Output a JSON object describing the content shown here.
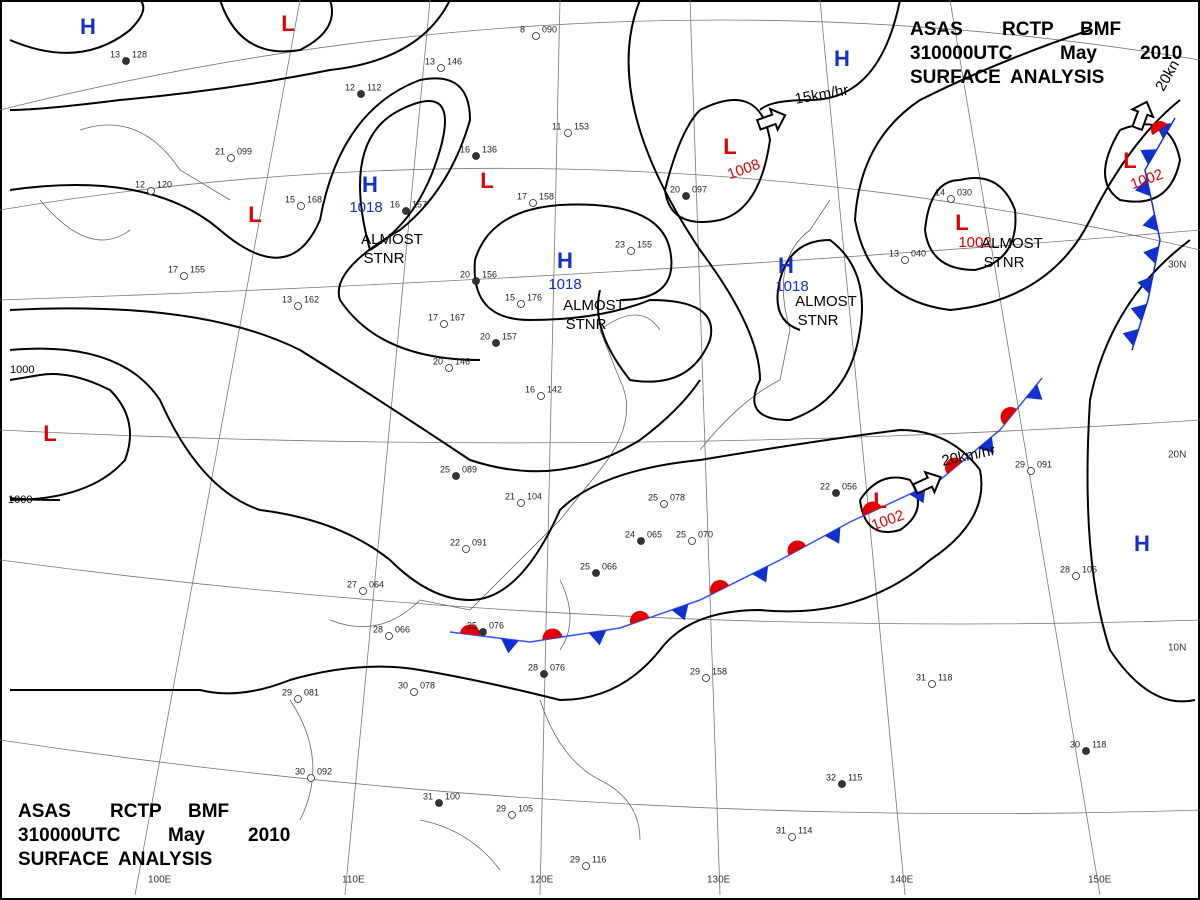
{
  "header_top": {
    "lines": [
      [
        "ASAS",
        "RCTP",
        "BMF"
      ],
      [
        "310000UTC",
        "May",
        "2010"
      ],
      [
        "SURFACE",
        "ANALYSIS"
      ]
    ]
  },
  "header_bottom": {
    "lines": [
      [
        "ASAS",
        "RCTP",
        "BMF"
      ],
      [
        "310000UTC",
        "May",
        "2010"
      ],
      [
        "SURFACE",
        "ANALYSIS"
      ]
    ]
  },
  "centers": [
    {
      "type": "H",
      "color": "#1030d0"
    },
    {
      "type": "L",
      "color": "#e00000"
    },
    {
      "type": "H",
      "pressure": "1018",
      "color": "#1030d0"
    },
    {
      "type": "L",
      "color": "#e00000"
    },
    {
      "type": "L",
      "color": "#e00000"
    },
    {
      "type": "H",
      "pressure": "1018",
      "color": "#1030d0"
    },
    {
      "type": "L",
      "pressure": "1008",
      "color": "#e00000"
    },
    {
      "type": "H",
      "pressure": "1018",
      "color": "#1030d0"
    },
    {
      "type": "H",
      "color": "#1030d0"
    },
    {
      "type": "L",
      "pressure": "1002",
      "color": "#e00000"
    },
    {
      "type": "L",
      "pressure": "1002",
      "color": "#e00000"
    },
    {
      "type": "L",
      "color": "#e00000"
    },
    {
      "type": "L",
      "pressure": "1002",
      "color": "#e00000"
    },
    {
      "type": "H",
      "color": "#1030d0"
    }
  ],
  "annotations": [
    [
      "ALMOST",
      "STNR"
    ],
    [
      "ALMOST",
      "STNR"
    ],
    [
      "ALMOST",
      "STNR"
    ],
    [
      "ALMOST",
      "STNR"
    ]
  ],
  "motions": [
    "15km/hr",
    "20km/hr",
    "20kn"
  ],
  "isobar_labels": [
    "1000",
    "1000"
  ],
  "longitudes": [
    "100E",
    "110E",
    "120E",
    "130E",
    "140E",
    "150E"
  ],
  "latitudes": [
    "30N",
    "20N",
    "10N"
  ],
  "stations": [
    [
      "13",
      "128"
    ],
    [
      "21",
      "099"
    ],
    [
      "12",
      "120"
    ],
    [
      "12",
      "112"
    ],
    [
      "13",
      "146"
    ],
    [
      "8",
      "090"
    ],
    [
      "16",
      "136"
    ],
    [
      "11",
      "153"
    ],
    [
      "15",
      "168"
    ],
    [
      "16",
      "157"
    ],
    [
      "17",
      "158"
    ],
    [
      "23",
      "155"
    ],
    [
      "20",
      "097"
    ],
    [
      "17",
      "155"
    ],
    [
      "13",
      "162"
    ],
    [
      "20",
      "156"
    ],
    [
      "15",
      "176"
    ],
    [
      "17",
      "167"
    ],
    [
      "20",
      "157"
    ],
    [
      "20",
      "146"
    ],
    [
      "16",
      "142"
    ],
    [
      "25",
      "089"
    ],
    [
      "21",
      "104"
    ],
    [
      "22",
      "091"
    ],
    [
      "24",
      "065"
    ],
    [
      "25",
      "078"
    ],
    [
      "25",
      "070"
    ],
    [
      "25",
      "066"
    ],
    [
      "27",
      "064"
    ],
    [
      "28",
      "066"
    ],
    [
      "25",
      "076"
    ],
    [
      "29",
      "081"
    ],
    [
      "30",
      "078"
    ],
    [
      "28",
      "076"
    ],
    [
      "29",
      "158"
    ],
    [
      "30",
      "092"
    ],
    [
      "31",
      "100"
    ],
    [
      "29",
      "105"
    ],
    [
      "31",
      "118"
    ],
    [
      "32",
      "115"
    ],
    [
      "31",
      "114"
    ],
    [
      "29",
      "116"
    ],
    [
      "30",
      "118"
    ],
    [
      "28",
      "106"
    ],
    [
      "29",
      "091"
    ],
    [
      "22",
      "056"
    ],
    [
      "14",
      "030"
    ],
    [
      "13",
      "040"
    ]
  ]
}
